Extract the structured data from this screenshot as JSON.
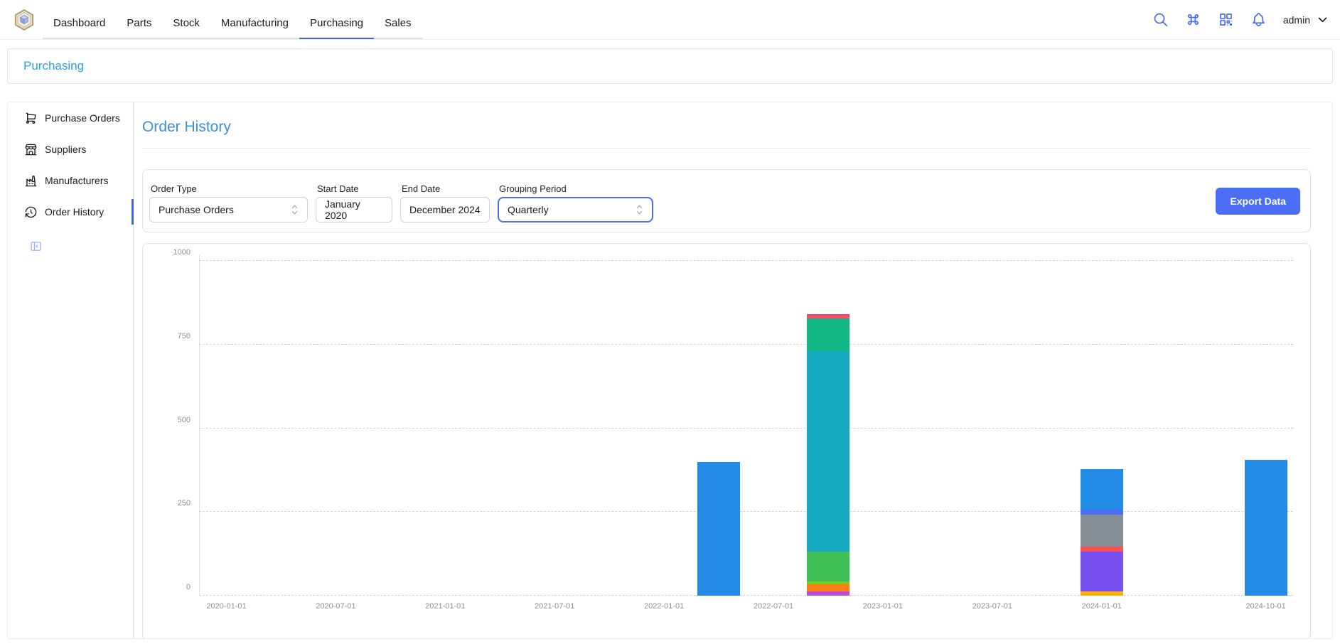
{
  "colors": {
    "accent": "#4263eb",
    "button_blue": "#4c6ef5",
    "icon_blue": "#4c6ef5",
    "breadcrumb_blue": "#2da0e2",
    "title_blue": "#3a8fdf",
    "collapse_icon_blue": "#91a7ff"
  },
  "nav": {
    "tabs": [
      {
        "label": "Dashboard"
      },
      {
        "label": "Parts"
      },
      {
        "label": "Stock"
      },
      {
        "label": "Manufacturing"
      },
      {
        "label": "Purchasing",
        "active": true
      },
      {
        "label": "Sales"
      }
    ],
    "icons": [
      "search-icon",
      "command-icon",
      "qr-scan-icon",
      "bell-icon"
    ],
    "user": {
      "name": "admin"
    }
  },
  "breadcrumb": {
    "label": "Purchasing"
  },
  "sidebar": {
    "items": [
      {
        "label": "Purchase Orders",
        "icon": "cart-icon",
        "active": false
      },
      {
        "label": "Suppliers",
        "icon": "store-icon",
        "active": false
      },
      {
        "label": "Manufacturers",
        "icon": "factory-icon",
        "active": false
      },
      {
        "label": "Order History",
        "icon": "history-icon",
        "active": true
      }
    ],
    "collapse_icon": "sidebar-collapse-icon"
  },
  "main": {
    "title": "Order History",
    "filters": {
      "order_type": {
        "label": "Order Type",
        "value": "Purchase Orders"
      },
      "start_date": {
        "label": "Start Date",
        "value": "January 2020"
      },
      "end_date": {
        "label": "End Date",
        "value": "December 2024"
      },
      "grouping": {
        "label": "Grouping Period",
        "value": "Quarterly"
      }
    },
    "export_label": "Export Data"
  },
  "chart_data": {
    "type": "bar",
    "stacked": true,
    "title": "",
    "xlabel": "",
    "ylabel": "",
    "ymax": 1020,
    "yticks": [
      0,
      250,
      500,
      750,
      1000
    ],
    "grid": "dashed-horizontal",
    "legend": "none",
    "categories": [
      "2020-01-01",
      "2020-04-01",
      "2020-07-01",
      "2020-10-01",
      "2021-01-01",
      "2021-04-01",
      "2021-07-01",
      "2021-10-01",
      "2022-01-01",
      "2022-04-01",
      "2022-07-01",
      "2022-10-01",
      "2023-01-01",
      "2023-04-01",
      "2023-07-01",
      "2023-10-01",
      "2024-01-01",
      "2024-04-01",
      "2024-07-01",
      "2024-10-01"
    ],
    "tick_indices": [
      0,
      2,
      4,
      6,
      8,
      10,
      12,
      14,
      16,
      19
    ],
    "x_tick_labels": [
      "2020-01-01",
      "2020-07-01",
      "2021-01-01",
      "2021-07-01",
      "2022-01-01",
      "2022-07-01",
      "2023-01-01",
      "2023-07-01",
      "2024-01-01",
      "2024-10-01"
    ],
    "palette": {
      "blue": "#228be6",
      "cyan": "#15aabf",
      "teal": "#12b886",
      "green": "#40c057",
      "lime": "#82c91e",
      "orange": "#fd7e14",
      "grape": "#be4bdb",
      "red": "#fa5252",
      "pink": "#e64980",
      "yellow": "#fab005",
      "violet": "#7950f2",
      "gray": "#868e96",
      "indigo": "#4c6ef5"
    },
    "bars": [
      {
        "category": "2022-04-01",
        "total": 400,
        "segments": [
          {
            "color": "blue",
            "value": 400
          }
        ]
      },
      {
        "category": "2022-10-01",
        "total": 842,
        "segments": [
          {
            "color": "grape",
            "value": 13
          },
          {
            "color": "orange",
            "value": 21
          },
          {
            "color": "lime",
            "value": 8
          },
          {
            "color": "green",
            "value": 90
          },
          {
            "color": "cyan",
            "value": 600
          },
          {
            "color": "teal",
            "value": 97
          },
          {
            "color": "red",
            "value": 7
          },
          {
            "color": "pink",
            "value": 6
          }
        ]
      },
      {
        "category": "2024-01-01",
        "total": 379,
        "segments": [
          {
            "color": "yellow",
            "value": 13
          },
          {
            "color": "violet",
            "value": 119
          },
          {
            "color": "red",
            "value": 15
          },
          {
            "color": "gray",
            "value": 96
          },
          {
            "color": "indigo",
            "value": 15
          },
          {
            "color": "blue",
            "value": 121
          }
        ]
      },
      {
        "category": "2024-10-01",
        "total": 405,
        "segments": [
          {
            "color": "blue",
            "value": 405
          }
        ]
      }
    ]
  }
}
